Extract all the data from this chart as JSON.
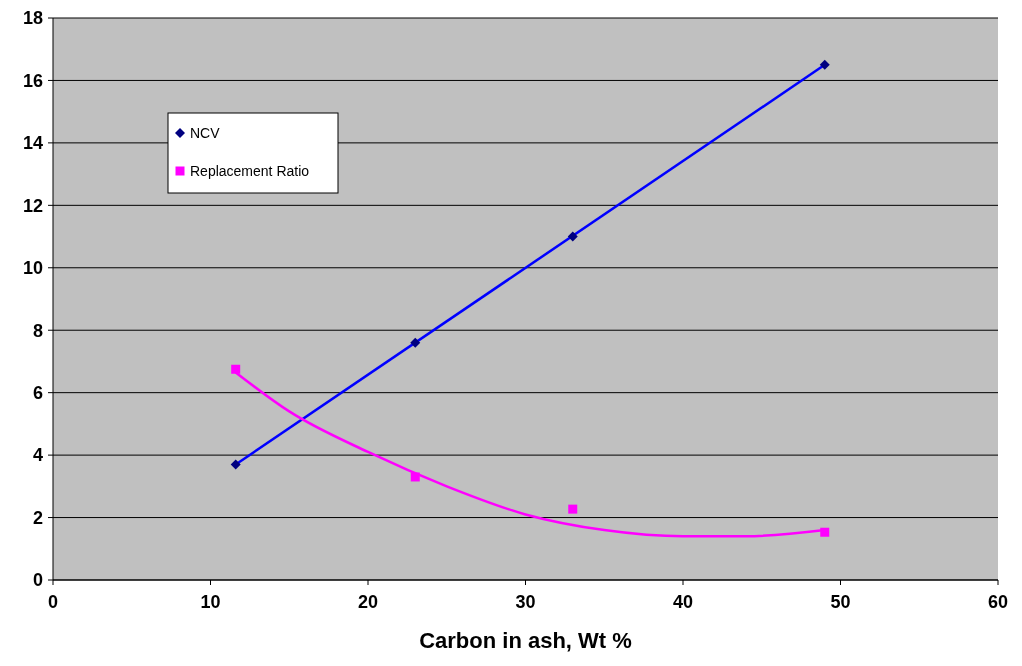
{
  "chart_data": {
    "type": "scatter",
    "xlabel": "Carbon in ash, Wt %",
    "xlim": [
      0,
      60
    ],
    "xticks": [
      0,
      10,
      20,
      30,
      40,
      50,
      60
    ],
    "ylim": [
      0,
      18
    ],
    "yticks": [
      0,
      2,
      4,
      6,
      8,
      10,
      12,
      14,
      16,
      18
    ],
    "grid": "y",
    "legend": "top left",
    "series": [
      {
        "name": "NCV",
        "type": "scatter",
        "marker": "diamond",
        "color": "#000080",
        "x": [
          11.6,
          23,
          33,
          49
        ],
        "values": [
          3.7,
          7.6,
          11,
          16.5
        ]
      },
      {
        "name": "Replacement Ratio",
        "type": "scatter",
        "marker": "square",
        "color": "#ff00ff",
        "x": [
          11.6,
          23,
          33,
          49
        ],
        "values": [
          6.75,
          3.3,
          2.27,
          1.53
        ]
      },
      {
        "type": "line",
        "marker": "none",
        "color": "#0000ff",
        "x": [
          11.6,
          49
        ],
        "values": [
          3.7,
          16.5
        ]
      },
      {
        "type": "line",
        "marker": "none",
        "color": "#ff00ff",
        "x": [
          11.6,
          15,
          20,
          25,
          30,
          35,
          40,
          44,
          49
        ],
        "values": [
          6.65,
          5.4,
          4.1,
          3.0,
          2.1,
          1.6,
          1.4,
          1.4,
          1.6
        ]
      }
    ]
  }
}
